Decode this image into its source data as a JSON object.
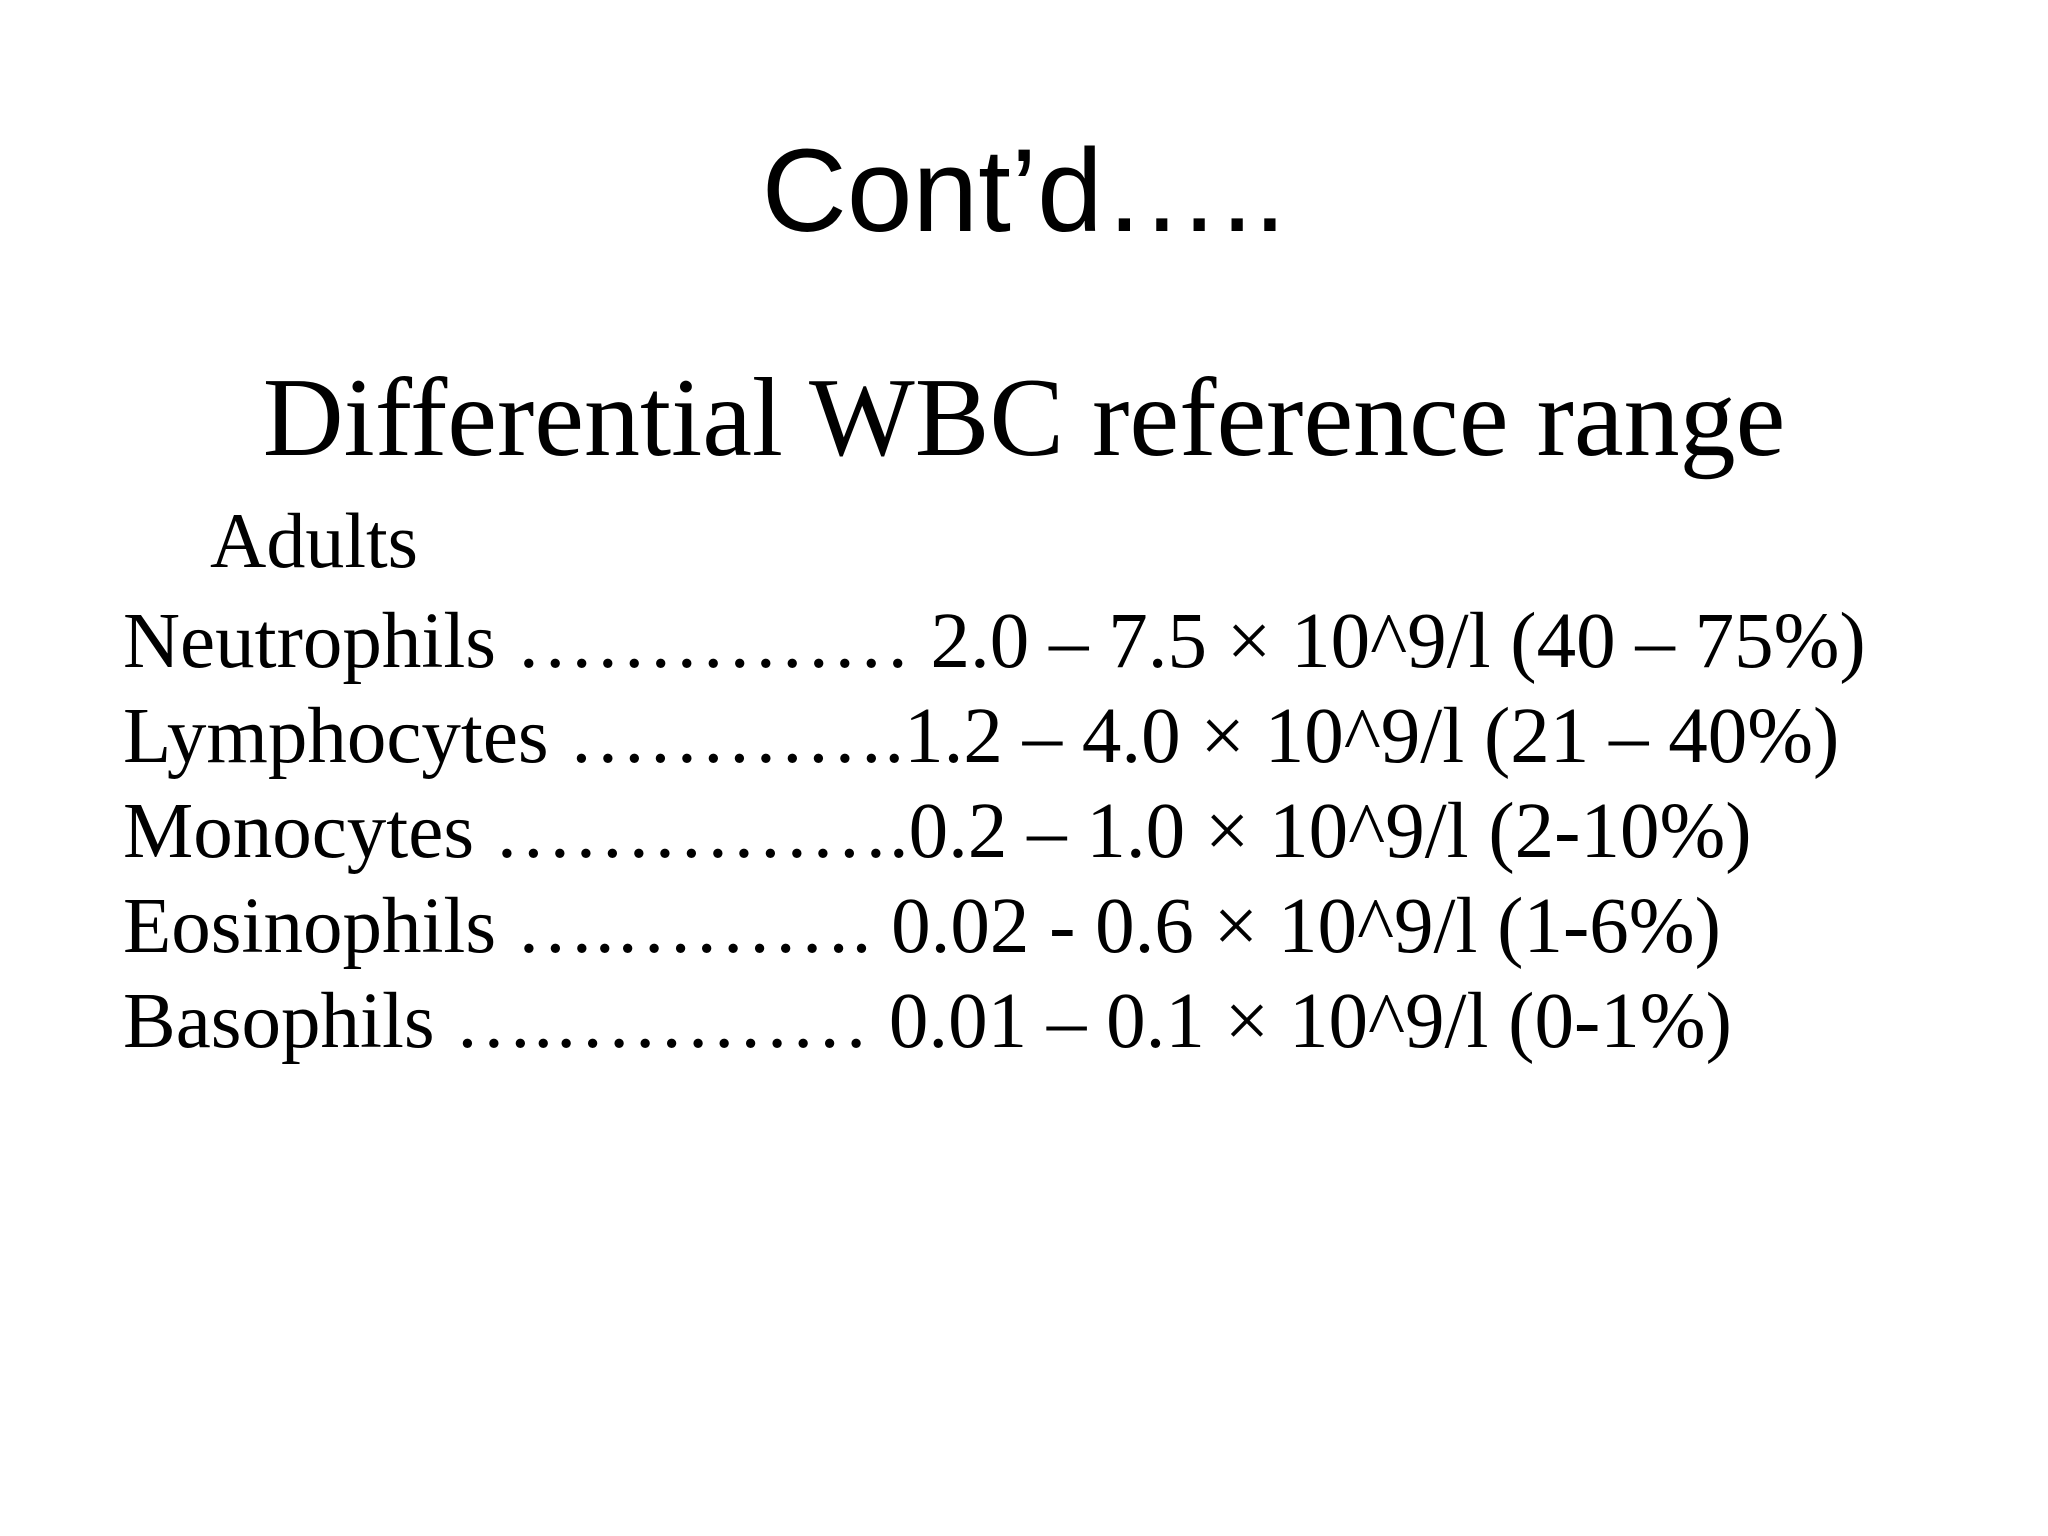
{
  "slide": {
    "background_color": "#ffffff",
    "text_color": "#000000",
    "title": "Cont’d…..",
    "heading": "Differential WBC reference range",
    "group_label": "Adults",
    "rows": [
      {
        "label": "Neutrophils",
        "dots": " …………… ",
        "value": "2.0 – 7.5 × 10^9/l (40 – 75%)"
      },
      {
        "label": "Lymphocytes",
        "dots": " ………….",
        "value": "1.2 – 4.0 × 10^9/l (21 – 40%)"
      },
      {
        "label": "Monocytes",
        "dots": " …………….",
        "value": "0.2 – 1.0 × 10^9/l (2-10%)"
      },
      {
        "label": "Eosinophils",
        "dots": " ….………. ",
        "value": "0.02 - 0.6 × 10^9/l (1-6%)"
      },
      {
        "label": "Basophils",
        "dots": " ….………… ",
        "value": "0.01 – 0.1 × 10^9/l (0-1%)"
      }
    ]
  }
}
